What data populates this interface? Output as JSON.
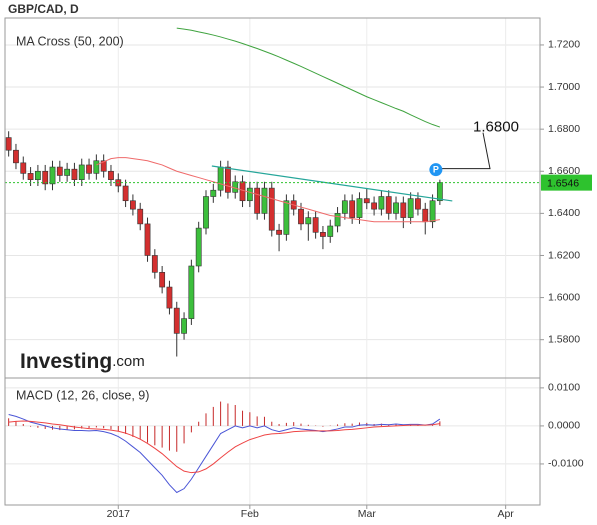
{
  "chart_data": [
    {
      "type": "candlestick",
      "title": "GBP/CAD, D",
      "subtitle": "MA Cross (50, 200)",
      "xlim": [
        -0.5,
        72.7
      ],
      "ylim": [
        1.5618,
        1.7328
      ],
      "yticks": [
        {
          "value": 1.58,
          "label": "1.5800"
        },
        {
          "value": 1.6,
          "label": "1.6000"
        },
        {
          "value": 1.62,
          "label": "1.6200"
        },
        {
          "value": 1.64,
          "label": "1.6400"
        },
        {
          "value": 1.66,
          "label": "1.6600"
        },
        {
          "value": 1.68,
          "label": "1.6800"
        },
        {
          "value": 1.7,
          "label": "1.7000"
        },
        {
          "value": 1.72,
          "label": "1.7200"
        }
      ],
      "grid": true,
      "up_color": "#3cbf3c",
      "down_color": "#d32f2f",
      "open": [
        1.676,
        1.67,
        1.664,
        1.659,
        1.656,
        1.66,
        1.654,
        1.662,
        1.658,
        1.661,
        1.656,
        1.663,
        1.659,
        1.665,
        1.66,
        1.656,
        1.653,
        1.646,
        1.642,
        1.635,
        1.62,
        1.612,
        1.605,
        1.595,
        1.583,
        1.59,
        1.615,
        1.633,
        1.648,
        1.651,
        1.662,
        1.65,
        1.655,
        1.646,
        1.652,
        1.64,
        1.652,
        1.632,
        1.63,
        1.646,
        1.642,
        1.635,
        1.638,
        1.631,
        1.629,
        1.634,
        1.64,
        1.646,
        1.638,
        1.647,
        1.645,
        1.642,
        1.648,
        1.64,
        1.645,
        1.638,
        1.647,
        1.642,
        1.636,
        1.646
      ],
      "high": [
        1.679,
        1.673,
        1.667,
        1.662,
        1.663,
        1.663,
        1.665,
        1.665,
        1.664,
        1.664,
        1.666,
        1.666,
        1.668,
        1.668,
        1.663,
        1.659,
        1.656,
        1.649,
        1.645,
        1.638,
        1.623,
        1.615,
        1.608,
        1.598,
        1.593,
        1.618,
        1.636,
        1.651,
        1.654,
        1.665,
        1.665,
        1.658,
        1.658,
        1.655,
        1.655,
        1.655,
        1.655,
        1.635,
        1.649,
        1.649,
        1.645,
        1.641,
        1.641,
        1.634,
        1.637,
        1.643,
        1.649,
        1.649,
        1.65,
        1.652,
        1.648,
        1.651,
        1.651,
        1.648,
        1.648,
        1.65,
        1.65,
        1.645,
        1.649,
        1.656
      ],
      "low": [
        1.667,
        1.661,
        1.656,
        1.653,
        1.653,
        1.651,
        1.651,
        1.655,
        1.655,
        1.653,
        1.653,
        1.656,
        1.656,
        1.657,
        1.653,
        1.65,
        1.643,
        1.639,
        1.632,
        1.617,
        1.609,
        1.602,
        1.592,
        1.572,
        1.58,
        1.587,
        1.612,
        1.63,
        1.645,
        1.648,
        1.647,
        1.647,
        1.643,
        1.643,
        1.637,
        1.637,
        1.629,
        1.622,
        1.627,
        1.639,
        1.632,
        1.627,
        1.628,
        1.623,
        1.626,
        1.631,
        1.637,
        1.635,
        1.635,
        1.642,
        1.639,
        1.639,
        1.637,
        1.637,
        1.633,
        1.635,
        1.639,
        1.63,
        1.633,
        1.644
      ],
      "close": [
        1.67,
        1.664,
        1.659,
        1.656,
        1.66,
        1.654,
        1.662,
        1.658,
        1.661,
        1.656,
        1.663,
        1.659,
        1.665,
        1.66,
        1.656,
        1.653,
        1.646,
        1.642,
        1.635,
        1.62,
        1.612,
        1.605,
        1.595,
        1.583,
        1.59,
        1.615,
        1.633,
        1.648,
        1.651,
        1.662,
        1.65,
        1.655,
        1.646,
        1.652,
        1.64,
        1.652,
        1.632,
        1.63,
        1.646,
        1.642,
        1.635,
        1.638,
        1.631,
        1.629,
        1.634,
        1.64,
        1.646,
        1.638,
        1.647,
        1.645,
        1.642,
        1.648,
        1.64,
        1.645,
        1.638,
        1.647,
        1.642,
        1.636,
        1.646,
        1.6546
      ],
      "series": [
        {
          "color": "#ef6a6a",
          "values": [
            null,
            null,
            null,
            null,
            null,
            null,
            null,
            null,
            null,
            null,
            null,
            null,
            1.663,
            1.6645,
            1.666,
            1.6665,
            1.6665,
            1.666,
            1.6655,
            1.665,
            1.664,
            1.663,
            1.6615,
            1.66,
            1.659,
            1.658,
            1.657,
            1.656,
            1.655,
            1.654,
            1.653,
            1.652,
            1.651,
            1.65,
            1.649,
            1.648,
            1.647,
            1.646,
            1.645,
            1.644,
            1.643,
            1.642,
            1.641,
            1.64,
            1.639,
            1.6385,
            1.638,
            1.6375,
            1.637,
            1.6365,
            1.636,
            1.636,
            1.636,
            1.636,
            1.636,
            1.636,
            1.636,
            1.636,
            1.6365,
            1.637
          ]
        },
        {
          "color": "#3fa33f",
          "values": [
            null,
            null,
            null,
            null,
            null,
            null,
            null,
            null,
            null,
            null,
            null,
            null,
            null,
            null,
            null,
            null,
            null,
            null,
            null,
            null,
            null,
            null,
            null,
            1.728,
            1.7275,
            1.727,
            1.7262,
            1.7255,
            1.7247,
            1.7238,
            1.7228,
            1.7218,
            1.7207,
            1.7195,
            1.7183,
            1.717,
            1.7157,
            1.7143,
            1.7128,
            1.7113,
            1.7098,
            1.7082,
            1.7066,
            1.705,
            1.7034,
            1.7018,
            1.7002,
            1.6986,
            1.697,
            1.6954,
            1.694,
            1.6926,
            1.6912,
            1.6898,
            1.6885,
            1.6868,
            1.6852,
            1.6836,
            1.6822,
            1.681
          ]
        }
      ],
      "trendline": {
        "color": "#26a69a",
        "x": [
          27.8,
          60.7
        ],
        "values": [
          1.6625,
          1.6459
        ]
      },
      "last_price": {
        "value": 1.6546,
        "label": "1.6546",
        "color": "#2ec22e"
      },
      "annotation": {
        "marker": "P",
        "text": "1.6800",
        "color": "#2196f3"
      },
      "watermark": [
        "Investing",
        ".com"
      ]
    },
    {
      "type": "macd",
      "title": "MACD (12, 26, close, 9)",
      "xlim": [
        -0.5,
        72.7
      ],
      "ylim": [
        -0.0208,
        0.0126
      ],
      "xticks": [
        {
          "value": 15,
          "label": "2017"
        },
        {
          "value": 33,
          "label": "Feb"
        },
        {
          "value": 49,
          "label": "Mar"
        },
        {
          "value": 68,
          "label": "Apr"
        }
      ],
      "yticks": [
        {
          "value": -0.01,
          "label": "-0.0100"
        },
        {
          "value": 0,
          "label": "0.0000"
        },
        {
          "value": 0.01,
          "label": "0.0100"
        }
      ],
      "series": [
        {
          "color": "#4a55d6",
          "values": [
            0.003,
            0.0025,
            0.0018,
            0.001,
            0.0005,
            0,
            -0.0005,
            -0.0008,
            -0.001,
            -0.0012,
            -0.0012,
            -0.0013,
            -0.0012,
            -0.0015,
            -0.002,
            -0.0028,
            -0.004,
            -0.0055,
            -0.007,
            -0.009,
            -0.011,
            -0.013,
            -0.0155,
            -0.0175,
            -0.0165,
            -0.014,
            -0.011,
            -0.008,
            -0.005,
            -0.002,
            -0.001,
            0,
            -0.0005,
            0,
            -0.0005,
            0,
            -0.001,
            -0.0015,
            -0.001,
            -0.0005,
            -0.0008,
            -0.001,
            -0.0012,
            -0.0015,
            -0.0012,
            -0.0008,
            -0.0003,
            -0.0003,
            0.0002,
            0.0003,
            0.0002,
            0.0004,
            0.0003,
            0.0005,
            0.0003,
            0.0004,
            0.0004,
            0.0002,
            0.0005,
            0.0018
          ]
        },
        {
          "color": "#ee4444",
          "values": [
            0.001,
            0.0012,
            0.0013,
            0.0012,
            0.001,
            0.0008,
            0.0005,
            0.0003,
            0,
            -0.0003,
            -0.0005,
            -0.0007,
            -0.0008,
            -0.0009,
            -0.0011,
            -0.0014,
            -0.0019,
            -0.0026,
            -0.0035,
            -0.0046,
            -0.0059,
            -0.0073,
            -0.009,
            -0.0107,
            -0.0119,
            -0.0123,
            -0.0121,
            -0.0113,
            -0.01,
            -0.0084,
            -0.0069,
            -0.0055,
            -0.0045,
            -0.0036,
            -0.003,
            -0.0024,
            -0.0021,
            -0.002,
            -0.0018,
            -0.0015,
            -0.0014,
            -0.0013,
            -0.0013,
            -0.0013,
            -0.0013,
            -0.0012,
            -0.001,
            -0.0009,
            -0.0007,
            -0.0005,
            -0.0003,
            -0.0002,
            -0.0001,
            0,
            0.0001,
            0.0002,
            0.0002,
            0.0002,
            0.0003,
            0.0006
          ]
        }
      ],
      "histogram": {
        "color": "#c62828",
        "values": [
          0.002,
          0.0013,
          0.0005,
          -0.0002,
          -0.0005,
          -0.0008,
          -0.001,
          -0.0011,
          -0.001,
          -0.0009,
          -0.0007,
          -0.0006,
          -0.0004,
          -0.0006,
          -0.0009,
          -0.0014,
          -0.0021,
          -0.0029,
          -0.0035,
          -0.0044,
          -0.0051,
          -0.0057,
          -0.0065,
          -0.0068,
          -0.0046,
          -0.0017,
          0.0011,
          0.0033,
          0.005,
          0.0064,
          0.0059,
          0.0055,
          0.004,
          0.0036,
          0.0025,
          0.0024,
          0.0011,
          0.0005,
          0.0008,
          0.001,
          0.0006,
          0.0003,
          0.0001,
          -0.0002,
          0.0001,
          0.0004,
          0.0007,
          0.0006,
          0.0009,
          0.0008,
          0.0005,
          0.0006,
          0.0004,
          0.0005,
          0.0002,
          0.0002,
          0.0002,
          0,
          0.0002,
          0.0012
        ]
      }
    }
  ]
}
